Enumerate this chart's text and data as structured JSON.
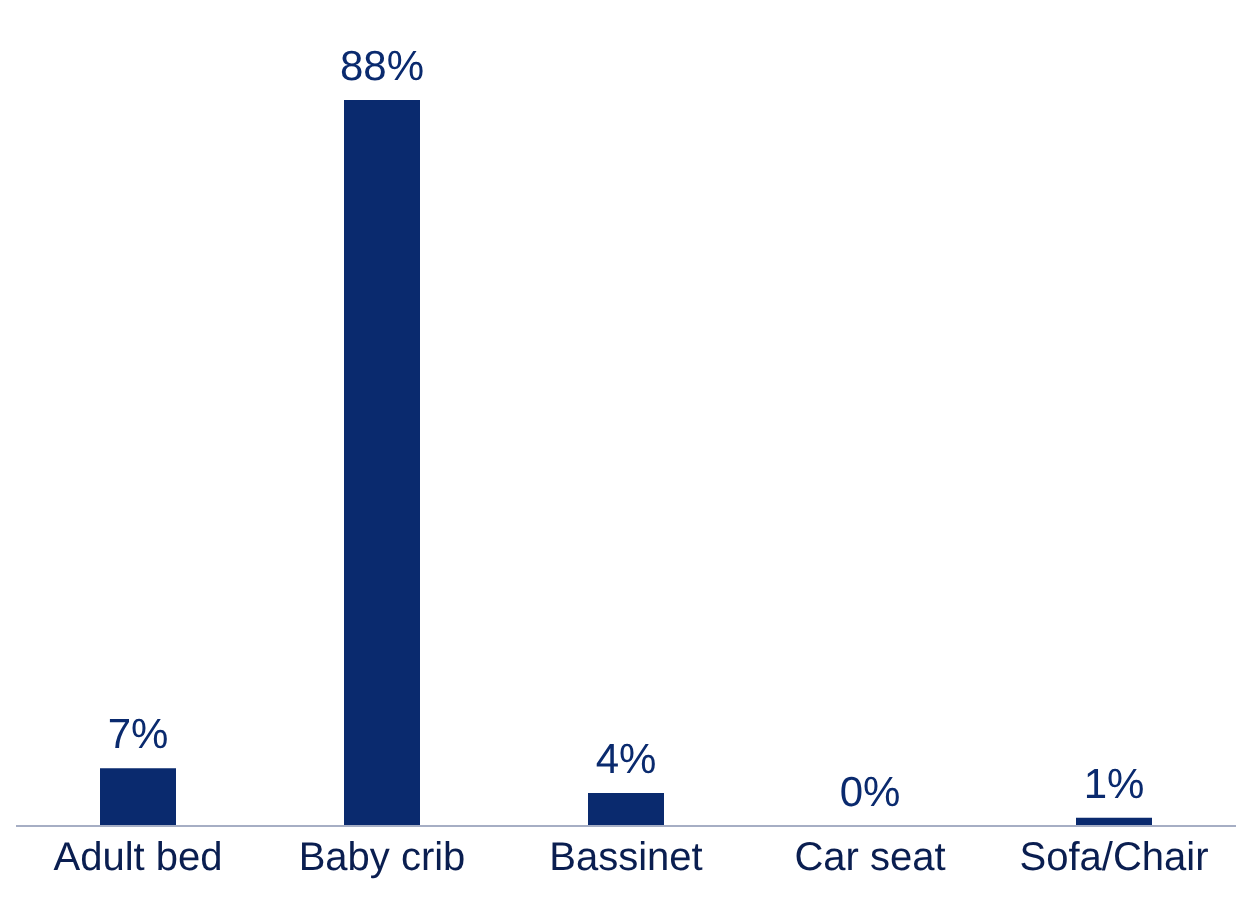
{
  "chart_data": {
    "type": "bar",
    "categories": [
      "Adult bed",
      "Baby crib",
      "Bassinet",
      "Car seat",
      "Sofa/Chair"
    ],
    "values": [
      7,
      88,
      4,
      0,
      1
    ],
    "value_labels": [
      "7%",
      "88%",
      "4%",
      "0%",
      "1%"
    ],
    "color": "#0a2a6e"
  }
}
